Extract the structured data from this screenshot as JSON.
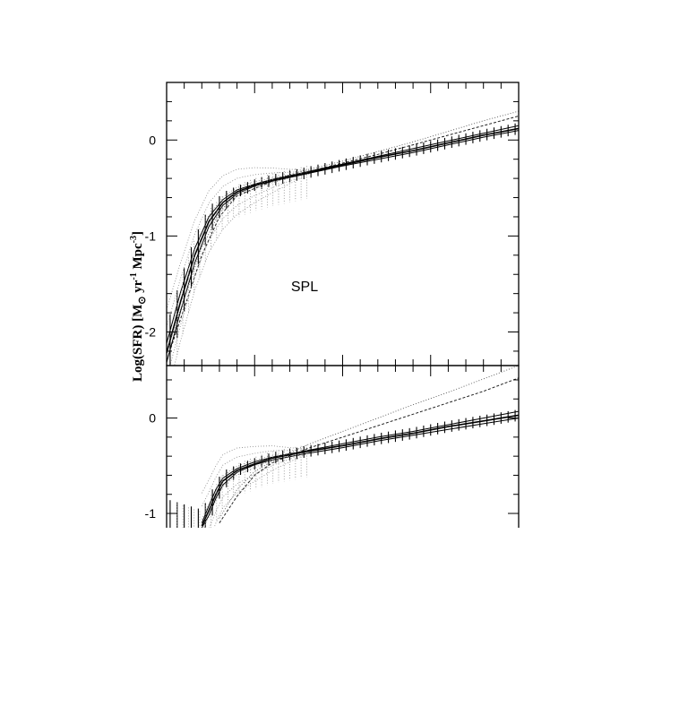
{
  "chart_data": [
    {
      "type": "line",
      "panel": "top",
      "annotation": "SPL",
      "ylabel_prefix": "Log(SFR) [M",
      "ylabel_sub": "⊙",
      "ylabel_mid": " yr",
      "ylabel_sup1": "-1",
      "ylabel_mid2": " Mpc",
      "ylabel_sup2": "-3",
      "ylabel_suffix": "]",
      "ylim": [
        -2.35,
        0.6
      ],
      "xlim": [
        0,
        1
      ],
      "yticks": [
        0,
        -1,
        -2
      ],
      "ytick_labels": [
        "0",
        "-1",
        "-2"
      ],
      "series": [
        {
          "style": "solid-band-upper",
          "x": [
            0.0,
            0.04,
            0.08,
            0.12,
            0.16,
            0.2,
            0.25,
            0.3,
            0.4,
            0.5,
            0.6,
            0.7,
            0.8,
            0.9,
            1.0
          ],
          "y": [
            -2.12,
            -1.58,
            -1.13,
            -0.8,
            -0.62,
            -0.52,
            -0.46,
            -0.41,
            -0.33,
            -0.25,
            -0.17,
            -0.09,
            -0.01,
            0.07,
            0.15
          ]
        },
        {
          "style": "solid-band-lower",
          "x": [
            0.0,
            0.04,
            0.08,
            0.12,
            0.16,
            0.2,
            0.25,
            0.3,
            0.4,
            0.5,
            0.6,
            0.7,
            0.8,
            0.9,
            1.0
          ],
          "y": [
            -2.32,
            -1.78,
            -1.28,
            -0.9,
            -0.68,
            -0.56,
            -0.48,
            -0.43,
            -0.35,
            -0.27,
            -0.2,
            -0.13,
            -0.05,
            0.03,
            0.1
          ]
        },
        {
          "style": "main-solid",
          "x": [
            0.0,
            0.04,
            0.08,
            0.12,
            0.16,
            0.2,
            0.25,
            0.3,
            0.4,
            0.5,
            0.6,
            0.7,
            0.8,
            0.9,
            1.0
          ],
          "y": [
            -2.22,
            -1.68,
            -1.2,
            -0.85,
            -0.65,
            -0.54,
            -0.47,
            -0.42,
            -0.34,
            -0.26,
            -0.18,
            -0.11,
            -0.03,
            0.05,
            0.12
          ]
        },
        {
          "style": "dashed",
          "x": [
            0.0,
            0.05,
            0.1,
            0.15,
            0.2,
            0.3,
            0.4,
            0.5,
            0.6,
            0.7,
            0.8,
            0.9,
            1.0
          ],
          "y": [
            -2.3,
            -1.75,
            -1.2,
            -0.8,
            -0.58,
            -0.43,
            -0.33,
            -0.24,
            -0.15,
            -0.05,
            0.05,
            0.15,
            0.25
          ]
        },
        {
          "style": "dotted",
          "x": [
            0.0,
            0.05,
            0.1,
            0.15,
            0.2,
            0.3,
            0.4,
            0.5,
            0.6,
            0.7,
            0.8,
            0.9,
            1.0
          ],
          "y": [
            -2.2,
            -1.65,
            -1.12,
            -0.76,
            -0.55,
            -0.41,
            -0.31,
            -0.22,
            -0.12,
            -0.02,
            0.09,
            0.2,
            0.3
          ]
        }
      ]
    },
    {
      "type": "line",
      "panel": "bottom",
      "ylim": [
        -1.15,
        0.55
      ],
      "xlim": [
        0,
        1
      ],
      "yticks": [
        0,
        -1
      ],
      "ytick_labels": [
        "0",
        "-1"
      ],
      "series": [
        {
          "style": "solid-band-upper",
          "x": [
            0.1,
            0.12,
            0.14,
            0.16,
            0.2,
            0.25,
            0.3,
            0.4,
            0.5,
            0.6,
            0.7,
            0.8,
            0.9,
            1.0
          ],
          "y": [
            -1.1,
            -0.92,
            -0.75,
            -0.63,
            -0.53,
            -0.46,
            -0.41,
            -0.34,
            -0.27,
            -0.2,
            -0.14,
            -0.07,
            0.0,
            0.07
          ]
        },
        {
          "style": "solid-band-lower",
          "x": [
            0.1,
            0.12,
            0.14,
            0.16,
            0.2,
            0.25,
            0.3,
            0.4,
            0.5,
            0.6,
            0.7,
            0.8,
            0.9,
            1.0
          ],
          "y": [
            -1.15,
            -1.02,
            -0.84,
            -0.7,
            -0.57,
            -0.49,
            -0.44,
            -0.37,
            -0.31,
            -0.24,
            -0.18,
            -0.12,
            -0.06,
            0.0
          ]
        },
        {
          "style": "main-solid",
          "x": [
            0.1,
            0.12,
            0.14,
            0.16,
            0.2,
            0.25,
            0.3,
            0.4,
            0.5,
            0.6,
            0.7,
            0.8,
            0.9,
            1.0
          ],
          "y": [
            -1.13,
            -0.97,
            -0.8,
            -0.66,
            -0.55,
            -0.48,
            -0.42,
            -0.35,
            -0.29,
            -0.22,
            -0.16,
            -0.09,
            -0.03,
            0.03
          ]
        },
        {
          "style": "dashed",
          "x": [
            0.15,
            0.2,
            0.25,
            0.3,
            0.4,
            0.5,
            0.6,
            0.7,
            0.8,
            0.9,
            1.0
          ],
          "y": [
            -1.1,
            -0.82,
            -0.6,
            -0.47,
            -0.32,
            -0.2,
            -0.08,
            0.04,
            0.16,
            0.28,
            0.42
          ]
        },
        {
          "style": "dotted",
          "x": [
            0.15,
            0.2,
            0.25,
            0.3,
            0.4,
            0.5,
            0.6,
            0.7,
            0.8,
            0.9,
            1.0
          ],
          "y": [
            -1.05,
            -0.75,
            -0.56,
            -0.45,
            -0.28,
            -0.14,
            0.0,
            0.14,
            0.27,
            0.41,
            0.55
          ]
        }
      ]
    }
  ]
}
